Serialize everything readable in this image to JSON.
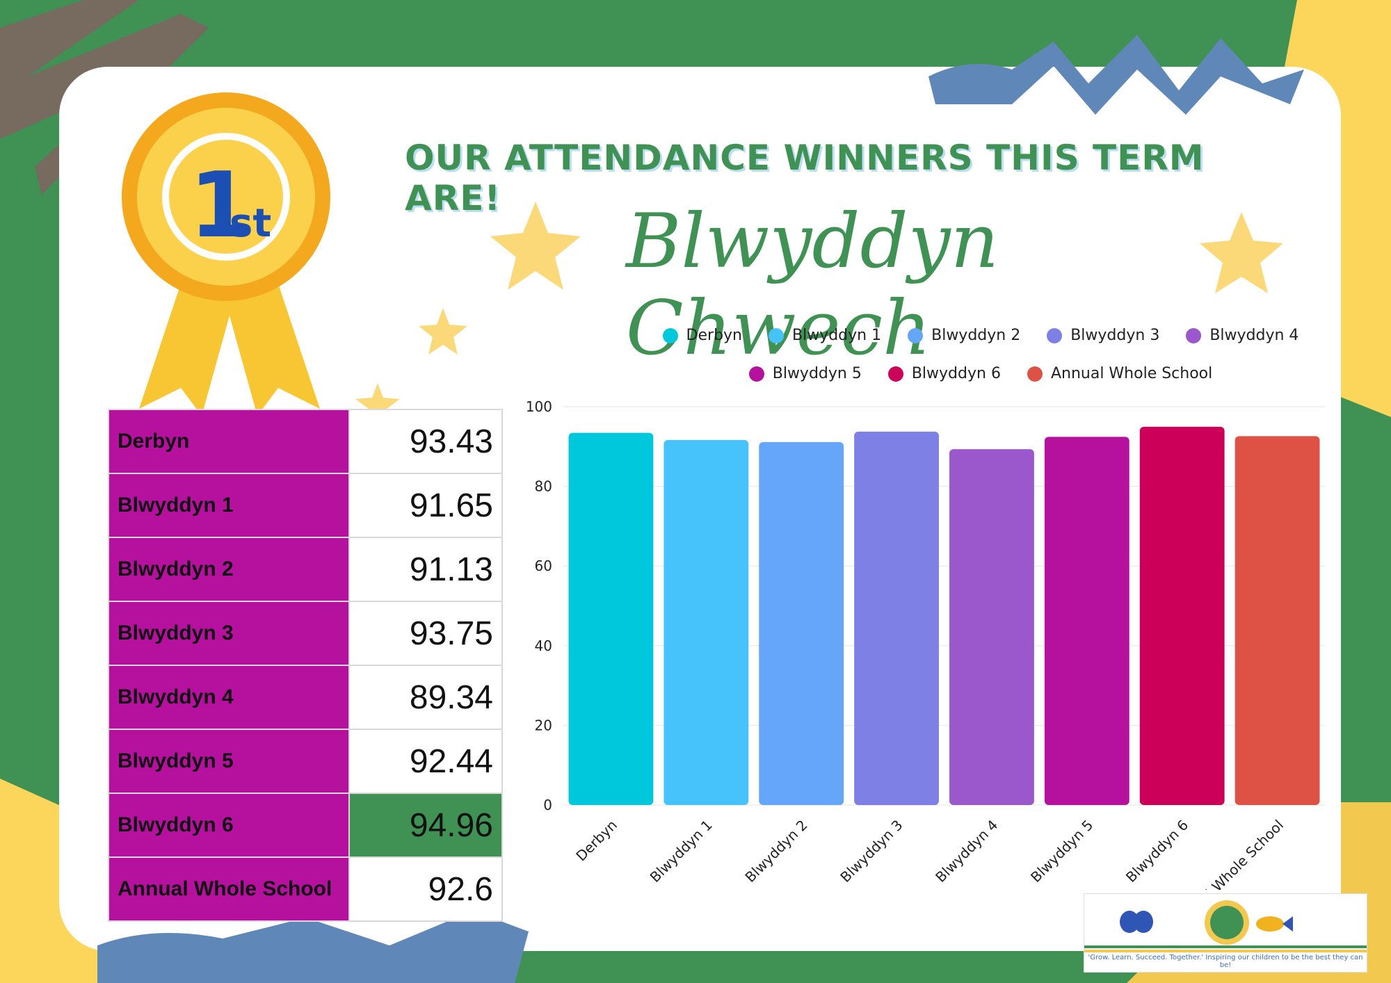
{
  "poster": {
    "title": "OUR ATTENDANCE WINNERS THIS TERM ARE!",
    "winner": "Blwyddyn Chwech",
    "badge_place": "1",
    "badge_suffix": "st"
  },
  "colors": {
    "background": "#3f9154",
    "accent_yellow": "#fbd65a",
    "table_label_bg": "#b5109e",
    "winner_highlight": "#3f9154"
  },
  "table": {
    "rows": [
      {
        "label": "Derbyn",
        "value": "93.43"
      },
      {
        "label": "Blwyddyn 1",
        "value": "91.65"
      },
      {
        "label": "Blwyddyn 2",
        "value": "91.13"
      },
      {
        "label": "Blwyddyn 3",
        "value": "93.75"
      },
      {
        "label": "Blwyddyn 4",
        "value": "89.34"
      },
      {
        "label": "Blwyddyn 5",
        "value": "92.44"
      },
      {
        "label": "Blwyddyn 6",
        "value": "94.96"
      },
      {
        "label": "Annual Whole School",
        "value": "92.6"
      }
    ]
  },
  "chart_data": {
    "type": "bar",
    "categories": [
      "Derbyn",
      "Blwyddyn 1",
      "Blwyddyn 2",
      "Blwyddyn 3",
      "Blwyddyn 4",
      "Blwyddyn 5",
      "Blwyddyn 6",
      "Annual Whole School"
    ],
    "values": [
      93.43,
      91.65,
      91.13,
      93.75,
      89.34,
      92.44,
      94.96,
      92.6
    ],
    "colors": [
      "#00c8dc",
      "#47c3fc",
      "#66a6fa",
      "#7f80e6",
      "#9b57cc",
      "#b5109e",
      "#cc0058",
      "#de5246"
    ],
    "legend": [
      "Derbyn",
      "Blwyddyn 1",
      "Blwyddyn 2",
      "Blwyddyn 3",
      "Blwyddyn 4",
      "Blwyddyn 5",
      "Blwyddyn 6",
      "Annual Whole School"
    ],
    "legend_position": "top",
    "y_ticks": [
      "0",
      "20",
      "40",
      "60",
      "80",
      "100"
    ],
    "ylim": [
      0,
      100
    ],
    "grid": true
  },
  "logo": {
    "caption": "'Grow. Learn. Succeed. Together.' Inspiring our children to be the best they can be!"
  }
}
